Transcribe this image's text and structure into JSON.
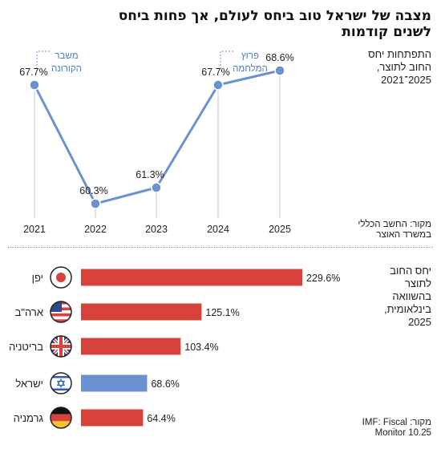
{
  "header": {
    "title_line1": "מצבה של ישראל טוב ביחס לעולם, אך פחות ביחס",
    "title_line2": "לשנים קודמות"
  },
  "chart_data": [
    {
      "type": "line",
      "subtitle_lines": [
        "התפתחות יחס",
        "החוב לתוצר,",
        "2025־2021"
      ],
      "source_lines": [
        "מקור: החשב הכללי",
        "במשרד האוצר"
      ],
      "x": [
        "2021",
        "2022",
        "2023",
        "2024",
        "2025"
      ],
      "series": [
        {
          "values": [
            67.7,
            60.3,
            61.3,
            67.7,
            68.6
          ],
          "labels": [
            "67.7%",
            "60.3%",
            "61.3%",
            "67.7%",
            "68.6%"
          ]
        }
      ],
      "annotations": [
        {
          "lines": [
            "משבר",
            "הקורונה"
          ],
          "year": "2021"
        },
        {
          "lines": [
            "פרוץ",
            "המלחמה"
          ],
          "year": "2024"
        }
      ],
      "ylim": [
        58,
        70
      ],
      "color": "#6a92d0"
    },
    {
      "type": "bar",
      "subtitle_lines": [
        "יחס החוב",
        "לתוצר",
        "בהשוואה",
        "בינלאומית,",
        "2025"
      ],
      "source_lines": [
        "מקור: IMF: Fiscal",
        "Monitor 10.25"
      ],
      "categories": [
        "יפן",
        "ארה\"ב",
        "בריטניה",
        "ישראל",
        "גרמניה"
      ],
      "flags": [
        "japan-flag-icon",
        "usa-flag-icon",
        "uk-flag-icon",
        "israel-flag-icon",
        "germany-flag-icon"
      ],
      "values": [
        229.6,
        125.1,
        103.4,
        68.6,
        64.4
      ],
      "labels": [
        "229.6%",
        "125.1%",
        "103.4%",
        "68.6%",
        "64.4%"
      ],
      "colors": [
        "#d9413b",
        "#d9413b",
        "#d9413b",
        "#6a92d0",
        "#d9413b"
      ]
    }
  ]
}
